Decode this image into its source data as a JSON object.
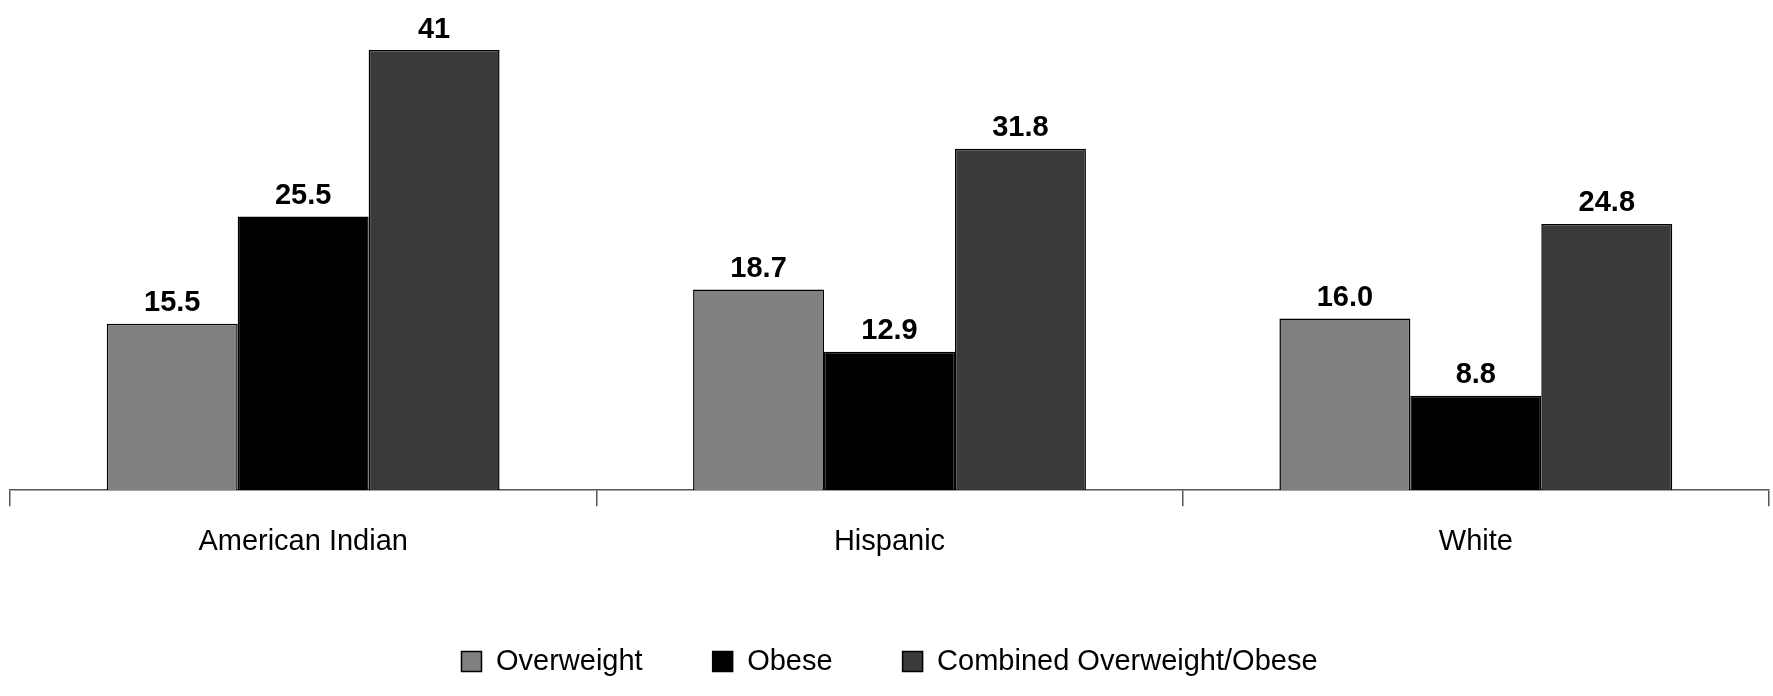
{
  "chart_data": {
    "type": "bar",
    "categories": [
      "American Indian",
      "Hispanic",
      "White"
    ],
    "series": [
      {
        "name": "Overweight",
        "color": "#808080",
        "values": [
          15.5,
          18.7,
          16.0
        ],
        "value_labels": [
          "15.5",
          "18.7",
          "16.0"
        ]
      },
      {
        "name": "Obese",
        "color": "#000000",
        "values": [
          25.5,
          12.9,
          8.8
        ],
        "value_labels": [
          "25.5",
          "12.9",
          "8.8"
        ]
      },
      {
        "name": "Combined Overweight/Obese",
        "color": "#3a3a3a",
        "values": [
          41,
          31.8,
          24.8
        ],
        "value_labels": [
          "41",
          "31.8",
          "24.8"
        ]
      }
    ],
    "legend": "bottom",
    "grid": false
  }
}
